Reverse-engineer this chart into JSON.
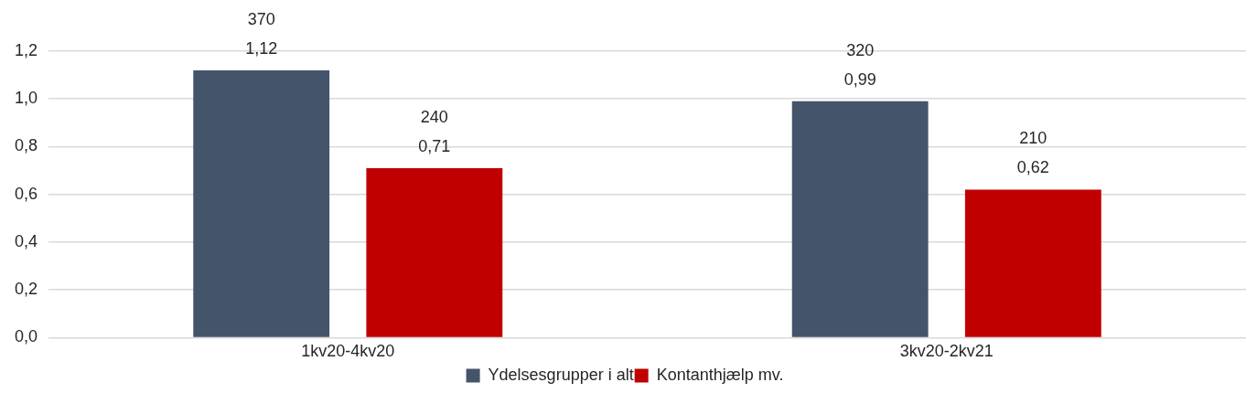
{
  "chart_data": {
    "type": "bar",
    "categories": [
      "1kv20-4kv20",
      "3kv20-2kv21"
    ],
    "series": [
      {
        "name": "Ydelsesgrupper i alt",
        "color": "#44546a",
        "values": [
          1.12,
          0.99
        ],
        "value_labels": [
          "370\n1,12",
          "320\n0,99"
        ]
      },
      {
        "name": "Kontanthjælp mv.",
        "color": "#c00000",
        "values": [
          0.71,
          0.62
        ],
        "value_labels": [
          "240\n0,71",
          "210\n0,62"
        ]
      }
    ],
    "ylim": [
      0,
      1.2
    ],
    "yticks": [
      {
        "value": 0,
        "label": "0,0"
      },
      {
        "value": 0.2,
        "label": "0,2"
      },
      {
        "value": 0.4,
        "label": "0,4"
      },
      {
        "value": 0.6,
        "label": "0,6"
      },
      {
        "value": 0.8,
        "label": "0,8"
      },
      {
        "value": 1,
        "label": "1,0"
      },
      {
        "value": 1.2,
        "label": "1,2"
      }
    ],
    "grid": "y",
    "legend": "bottom"
  }
}
